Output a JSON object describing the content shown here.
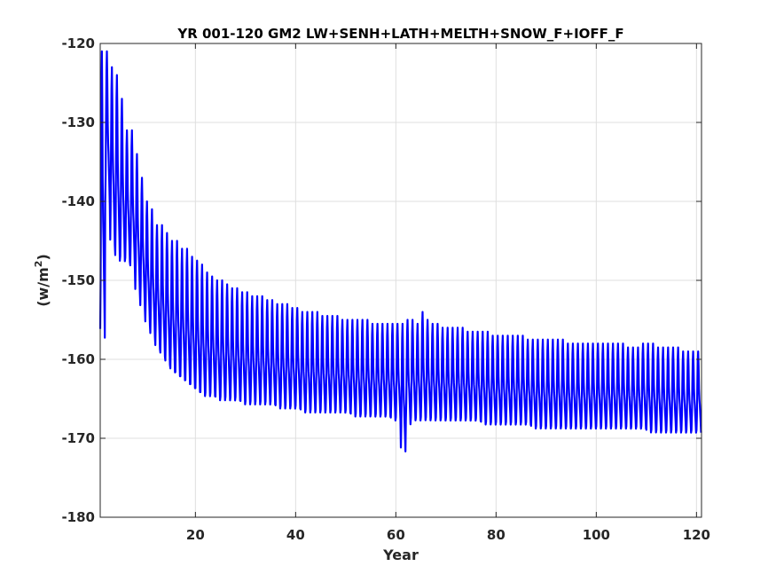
{
  "chart_data": {
    "type": "line",
    "title": "YR 001-120 GM2 LW+SENH+LATH+MELTH+SNOW_F+IOFF_F",
    "xlabel": "Year",
    "ylabel_base": "(w/m",
    "ylabel_sup": "2",
    "ylabel_close": ")",
    "xlim": [
      1,
      121
    ],
    "ylim": [
      -180,
      -120
    ],
    "xticks": [
      20,
      40,
      60,
      80,
      100,
      120
    ],
    "xtick_labels": [
      "20",
      "40",
      "60",
      "80",
      "100",
      "120"
    ],
    "yticks": [
      -180,
      -170,
      -160,
      -150,
      -140,
      -130,
      -120
    ],
    "ytick_labels": [
      "-180",
      "-170",
      "-160",
      "-150",
      "-140",
      "-130",
      "-120"
    ],
    "grid": true,
    "line_color": "#0000ff",
    "series": [
      {
        "sampling": "monthly, 12 values per year",
        "annual_max": [
          -121,
          -121,
          -123,
          -124,
          -127,
          -131,
          -131,
          -134,
          -137,
          -140,
          -141,
          -143,
          -143,
          -144,
          -145,
          -145,
          -146,
          -146,
          -147,
          -147.5,
          -148,
          -149,
          -149.5,
          -150,
          -150,
          -150.5,
          -151,
          -151,
          -151.5,
          -151.5,
          -152,
          -152,
          -152,
          -152.5,
          -152.5,
          -153,
          -153,
          -153,
          -153.5,
          -153.5,
          -154,
          -154,
          -154,
          -154,
          -154.5,
          -154.5,
          -154.5,
          -154.5,
          -155,
          -155,
          -155,
          -155,
          -155,
          -155,
          -155.5,
          -155.5,
          -155.5,
          -155.5,
          -155.5,
          -155.5,
          -155.5,
          -155,
          -155,
          -155.5,
          -154,
          -155,
          -155.5,
          -155.5,
          -156,
          -156,
          -156,
          -156,
          -156,
          -156.5,
          -156.5,
          -156.5,
          -156.5,
          -156.5,
          -157,
          -157,
          -157,
          -157,
          -157,
          -157,
          -157,
          -157.5,
          -157.5,
          -157.5,
          -157.5,
          -157.5,
          -157.5,
          -157.5,
          -157.5,
          -158,
          -158,
          -158,
          -158,
          -158,
          -158,
          -158,
          -158,
          -158,
          -158,
          -158,
          -158,
          -158.5,
          -158.5,
          -158.5,
          -158,
          -158,
          -158,
          -158.5,
          -158.5,
          -158.5,
          -158.5,
          -158.5,
          -159,
          -159,
          -159,
          -159
        ],
        "annual_min": [
          -158,
          -141,
          -146,
          -148,
          -148,
          -148,
          -149,
          -152,
          -154,
          -156,
          -157.5,
          -159,
          -160,
          -161,
          -162,
          -162.5,
          -163,
          -163.5,
          -164,
          -164.5,
          -165,
          -165,
          -165,
          -165.5,
          -165.5,
          -165.5,
          -165.5,
          -165.5,
          -166,
          -166,
          -166,
          -166,
          -166,
          -166,
          -166,
          -166.5,
          -166.5,
          -166.5,
          -166.5,
          -166.5,
          -167,
          -167,
          -167,
          -167,
          -167,
          -167,
          -167,
          -167,
          -167,
          -167,
          -167.5,
          -167.5,
          -167.5,
          -167.5,
          -167.5,
          -167.5,
          -167.5,
          -167.5,
          -168,
          -168,
          -172,
          -168.5,
          -168,
          -168,
          -168,
          -168,
          -168,
          -168,
          -168,
          -168,
          -168,
          -168,
          -168,
          -168,
          -168,
          -168,
          -168.5,
          -168.5,
          -168.5,
          -168.5,
          -168.5,
          -168.5,
          -168.5,
          -168.5,
          -168.5,
          -168.5,
          -169,
          -169,
          -169,
          -169,
          -169,
          -169,
          -169,
          -169,
          -169,
          -169,
          -169,
          -169,
          -169,
          -169,
          -169,
          -169,
          -169,
          -169,
          -169,
          -169,
          -169,
          -169,
          -169,
          -169.5,
          -169.5,
          -169.5,
          -169.5,
          -169.5,
          -169.5,
          -169.5,
          -169.5,
          -169.5,
          -169.5,
          -169.5
        ]
      }
    ]
  }
}
